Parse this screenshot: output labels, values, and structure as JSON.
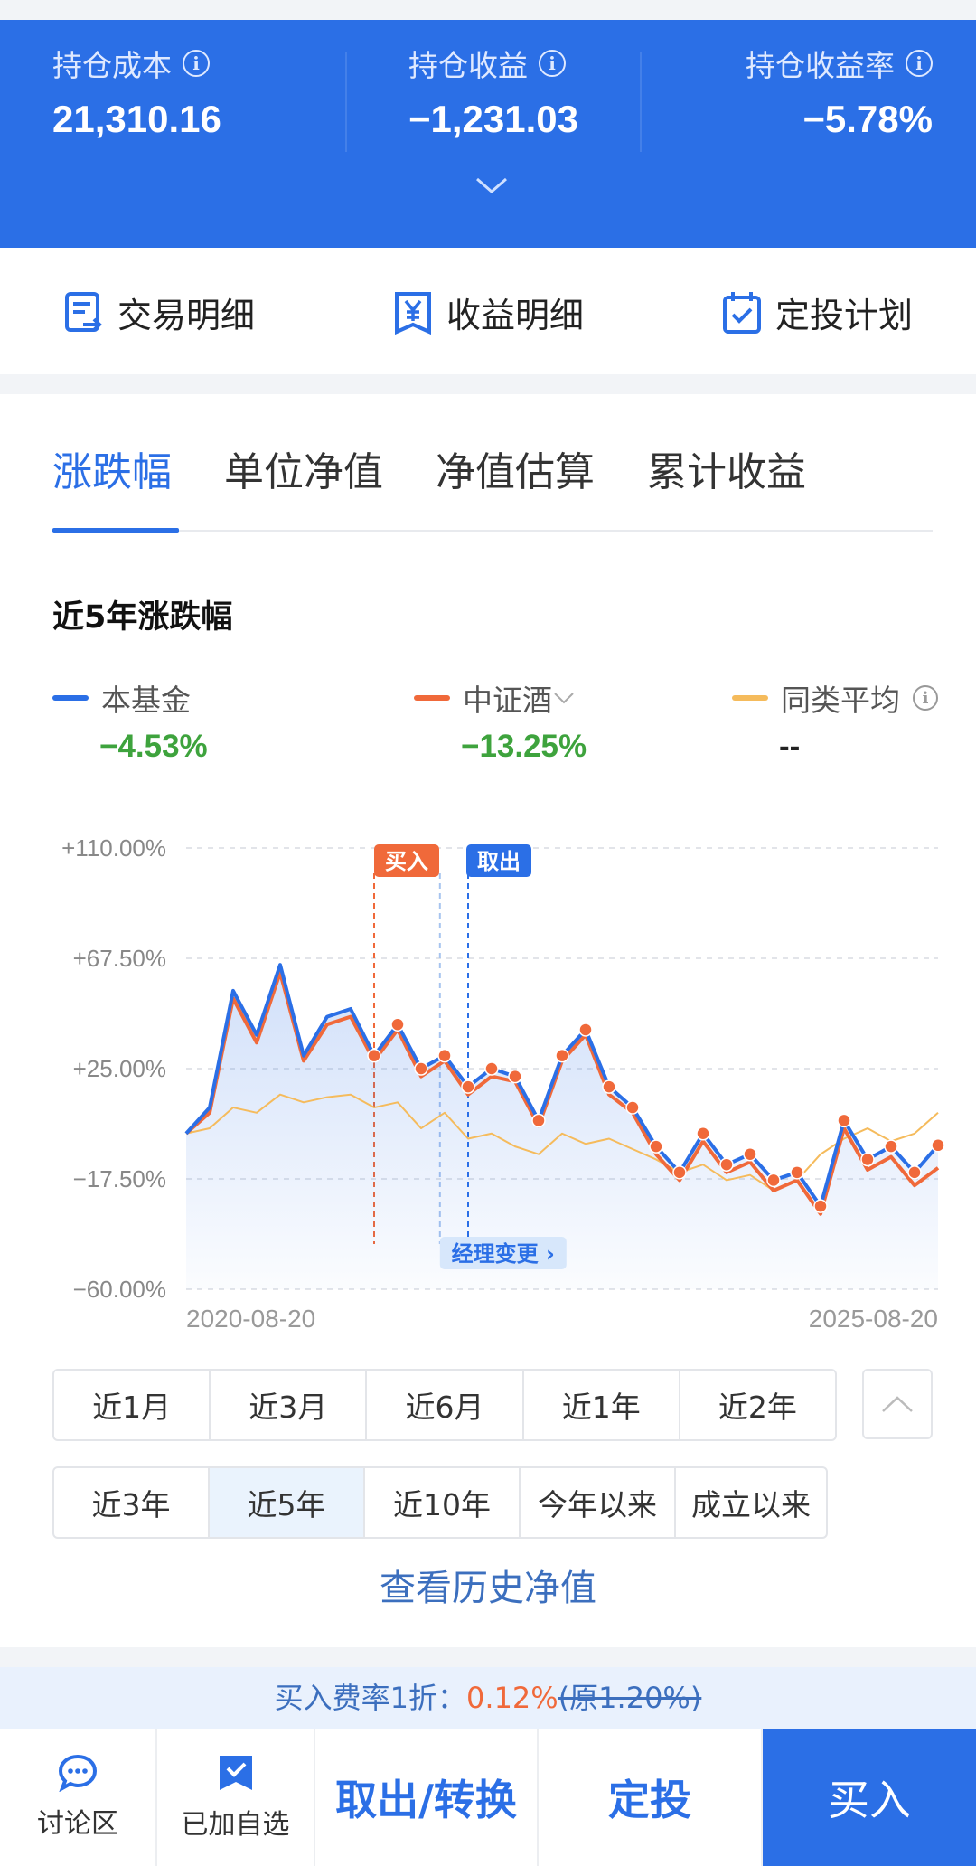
{
  "summary": {
    "cost_label": "持仓成本",
    "cost_value": "21,310.16",
    "profit_label": "持仓收益",
    "profit_value": "−1,231.03",
    "rate_label": "持仓收益率",
    "rate_value": "−5.78%"
  },
  "actions": {
    "trade_detail": "交易明细",
    "profit_detail": "收益明细",
    "plan": "定投计划"
  },
  "tabs": [
    "涨跌幅",
    "单位净值",
    "净值估算",
    "累计收益"
  ],
  "chart_title": "近5年涨跌幅",
  "legend": [
    {
      "name": "本基金",
      "value": "−4.53%",
      "color": "#2b6fe6"
    },
    {
      "name": "中证酒",
      "value": "−13.25%",
      "color": "#f0693a"
    },
    {
      "name": "同类平均",
      "value": "--",
      "color": "#f5bb5c"
    }
  ],
  "chart_data": {
    "type": "line",
    "y_ticks": [
      "+110.00%",
      "+67.50%",
      "+25.00%",
      "−17.50%",
      "−60.00%"
    ],
    "ylim": [
      -60,
      110
    ],
    "x_start": "2020-08-20",
    "x_end": "2025-08-20",
    "markers": {
      "buy": "买入",
      "sell": "取出",
      "manager": "经理变更"
    },
    "series": [
      {
        "name": "本基金",
        "color": "#2b6fe6",
        "values": [
          0,
          10,
          55,
          38,
          65,
          30,
          45,
          48,
          30,
          42,
          25,
          30,
          18,
          25,
          22,
          5,
          30,
          40,
          18,
          10,
          -5,
          -15,
          0,
          -12,
          -8,
          -18,
          -15,
          -28,
          5,
          -10,
          -5,
          -15,
          -4.53
        ]
      },
      {
        "name": "中证酒",
        "color": "#f0693a",
        "values": [
          0,
          8,
          52,
          35,
          62,
          28,
          42,
          45,
          28,
          40,
          22,
          28,
          15,
          22,
          20,
          3,
          28,
          38,
          15,
          8,
          -8,
          -18,
          -3,
          -15,
          -11,
          -22,
          -18,
          -31,
          2,
          -14,
          -9,
          -20,
          -13.25
        ]
      },
      {
        "name": "同类平均",
        "color": "#f5bb5c",
        "values": [
          0,
          2,
          10,
          8,
          15,
          12,
          14,
          15,
          10,
          12,
          2,
          8,
          -2,
          0,
          -5,
          -8,
          0,
          -4,
          -2,
          -6,
          -10,
          -15,
          -12,
          -18,
          -16,
          -22,
          -18,
          -8,
          -2,
          2,
          -3,
          0,
          8
        ]
      }
    ]
  },
  "periods_row1": [
    "近1月",
    "近3月",
    "近6月",
    "近1年",
    "近2年"
  ],
  "periods_row2": [
    "近3年",
    "近5年",
    "近10年",
    "今年以来",
    "成立以来"
  ],
  "history_link": "查看历史净值",
  "fee": {
    "prefix": "买入费率1折：",
    "rate": "0.12%",
    "orig": "(原1.20%)"
  },
  "bottom": {
    "discuss": "讨论区",
    "watch": "已加自选",
    "redeem": "取出/转换",
    "plan": "定投",
    "buy": "买入"
  }
}
